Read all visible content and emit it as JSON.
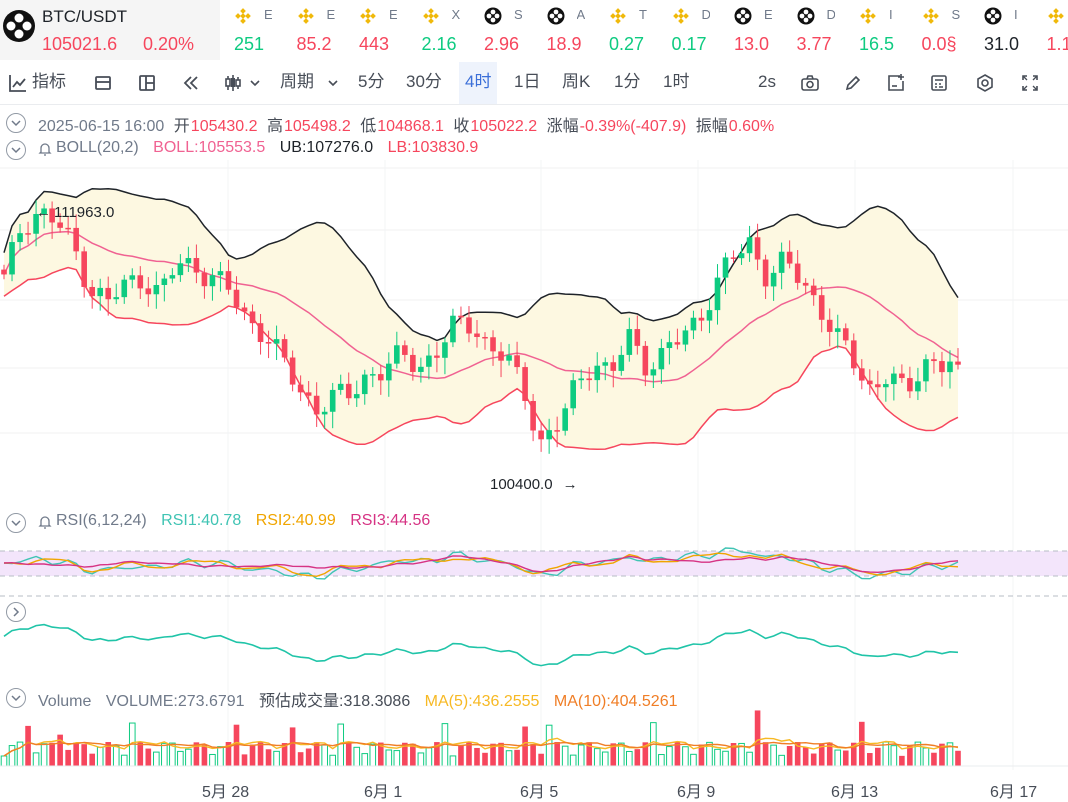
{
  "pair": {
    "name": "BTC/USDT",
    "price": "105021.6",
    "change": "0.20%"
  },
  "ticker_items": [
    {
      "icon": "binance-icon",
      "name": "E",
      "value": "251",
      "color": "#0ecb81"
    },
    {
      "icon": "binance-icon",
      "name": "E",
      "value": "85.2",
      "color": "#f6465d"
    },
    {
      "icon": "binance-icon",
      "name": "E",
      "value": "443",
      "color": "#f6465d"
    },
    {
      "icon": "binance-icon",
      "name": "X",
      "value": "2.16",
      "color": "#0ecb81"
    },
    {
      "icon": "bitget-icon",
      "name": "S",
      "value": "2.96",
      "color": "#f6465d"
    },
    {
      "icon": "bitget-icon",
      "name": "A",
      "value": "18.9",
      "color": "#f6465d"
    },
    {
      "icon": "binance-icon",
      "name": "T",
      "value": "0.27",
      "color": "#0ecb81"
    },
    {
      "icon": "binance-icon",
      "name": "D",
      "value": "0.17",
      "color": "#0ecb81"
    },
    {
      "icon": "bitget-icon",
      "name": "E",
      "value": "13.0",
      "color": "#f6465d"
    },
    {
      "icon": "bitget-icon",
      "name": "D",
      "value": "3.77",
      "color": "#f6465d"
    },
    {
      "icon": "binance-icon",
      "name": "I",
      "value": "16.5",
      "color": "#0ecb81"
    },
    {
      "icon": "binance-icon",
      "name": "S",
      "value": "0.0§",
      "color": "#f6465d"
    },
    {
      "icon": "bitget-icon",
      "name": "I",
      "value": "31.0",
      "color": "#1e2329"
    },
    {
      "icon": "binance-icon",
      "name": "",
      "value": "1.1",
      "color": "#f6465d"
    }
  ],
  "toolbar": {
    "indicators": "指标",
    "period": "周期",
    "intervals": [
      "5分",
      "30分",
      "4时",
      "1日",
      "周K",
      "1分",
      "1时"
    ],
    "active_interval": "4时",
    "replay_speed": "2s"
  },
  "ohlc": {
    "datetime": "2025-06-15 16:00",
    "open_label": "开",
    "open": "105430.2",
    "high_label": "高",
    "high": "105498.2",
    "low_label": "低",
    "low": "104868.1",
    "close_label": "收",
    "close": "105022.2",
    "change_label": "涨幅",
    "change": "-0.39%(-407.9)",
    "amp_label": "振幅",
    "amp": "0.60%"
  },
  "boll": {
    "name": "BOLL(20,2)",
    "mid": "BOLL:105553.5",
    "ub": "UB:107276.0",
    "lb": "LB:103830.9"
  },
  "price_annotations": {
    "high": "111963.0",
    "low": "100400.0"
  },
  "rsi": {
    "name": "RSI(6,12,24)",
    "rsi1": "RSI1:40.78",
    "rsi2": "RSI2:40.99",
    "rsi3": "RSI3:44.56"
  },
  "volume": {
    "name": "Volume",
    "volume": "VOLUME:273.6791",
    "est_label": "预估成交量:",
    "est": "318.3086",
    "ma5": "MA(5):436.2555",
    "ma10": "MA(10):404.5261"
  },
  "x_axis": [
    "5月 28",
    "6月 1",
    "6月 5",
    "6月 9",
    "6月 13",
    "6月 17"
  ],
  "colors": {
    "up": "#0ecb81",
    "down": "#f6465d",
    "boll_mid": "#f06292",
    "boll_band": "#1e2329",
    "boll_fill": "#fdf8e1",
    "rsi1": "#40c4b4",
    "rsi2": "#f0a500",
    "rsi3": "#d63384",
    "rsi_fill": "#f3e5fb",
    "panel3": "#20c4a8",
    "ma5": "#f7b924",
    "ma10": "#f07e26"
  },
  "chart_data": {
    "type": "candlestick",
    "interval": "4h",
    "x_ticks": [
      "5月 28",
      "6月 1",
      "6月 5",
      "6月 9",
      "6月 13",
      "6月 17"
    ],
    "y_range_est": [
      99500,
      113500
    ],
    "price_anchors": [
      {
        "label": "high",
        "value": 111963.0
      },
      {
        "label": "low",
        "value": 100400.0
      },
      {
        "label": "last_close",
        "value": 105022.2
      }
    ],
    "close_path_est": [
      108500,
      110800,
      111400,
      110900,
      109900,
      108200,
      107600,
      108300,
      108700,
      107900,
      109200,
      109100,
      108700,
      108000,
      106900,
      106400,
      105200,
      104000,
      103300,
      103600,
      103800,
      104700,
      104800,
      105400,
      105000,
      105600,
      106600,
      106800,
      105700,
      105200,
      103900,
      101800,
      102500,
      104200,
      105300,
      104500,
      106200,
      105100,
      105400,
      106100,
      106900,
      108300,
      109400,
      110100,
      108700,
      109200,
      108500,
      107500,
      106100,
      105100,
      104000,
      104700,
      103600,
      105300,
      105000,
      105200
    ],
    "boll": {
      "mid": 105553.5,
      "ub": 107276.0,
      "lb": 103830.9
    },
    "rsi": {
      "rsi1": 40.78,
      "rsi2": 40.99,
      "rsi3": 44.56
    },
    "volume": {
      "last": 273.6791,
      "estimated": 318.3086,
      "ma5": 436.2555,
      "ma10": 404.5261
    }
  }
}
